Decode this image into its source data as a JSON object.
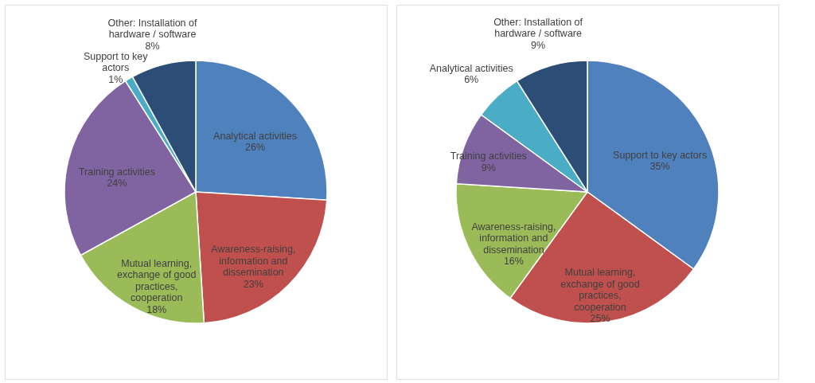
{
  "chart_data": [
    {
      "type": "pie",
      "categories": [
        "Analytical activities",
        "Awareness-raising, information and dissemination",
        "Mutual learning, exchange of good practices, cooperation",
        "Training activities",
        "Support to key actors",
        "Other: Installation of hardware / software"
      ],
      "values": [
        26,
        23,
        18,
        24,
        1,
        8
      ],
      "value_labels": [
        "26%",
        "23%",
        "18%",
        "24%",
        "1%",
        "8%"
      ],
      "colors": [
        "#4f81bd",
        "#c0504d",
        "#9bbb59",
        "#8064a2",
        "#4bacc6",
        "#2c4d75"
      ],
      "legend": false
    },
    {
      "type": "pie",
      "categories": [
        "Support to key actors",
        "Mutual learning, exchange of good practices, cooperation",
        "Awareness-raising, information and dissemination",
        "Training activities",
        "Analytical activities",
        "Other: Installation of hardware / software"
      ],
      "values": [
        35,
        25,
        16,
        9,
        6,
        9
      ],
      "value_labels": [
        "35%",
        "25%",
        "16%",
        "9%",
        "6%",
        "9%"
      ],
      "colors": [
        "#4f81bd",
        "#c0504d",
        "#9bbb59",
        "#8064a2",
        "#4bacc6",
        "#2c4d75"
      ],
      "legend": false
    }
  ]
}
